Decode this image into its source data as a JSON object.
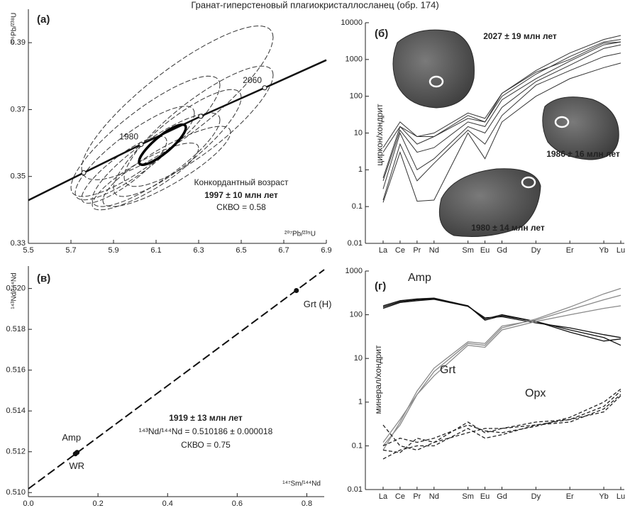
{
  "page_title": "Гранат-гиперстеновый плагиокристаллосланец (обр. 174)",
  "chart_data": [
    {
      "type": "concordia",
      "panel": "(a)",
      "xlabel": "²⁰⁷Pb/²³⁵U",
      "ylabel": "²⁰⁶Pb/²³⁸U",
      "xlim": [
        5.5,
        6.9
      ],
      "ylim": [
        0.33,
        0.4
      ],
      "xticks": [
        5.5,
        5.7,
        5.9,
        6.1,
        6.3,
        6.5,
        6.7,
        6.9
      ],
      "yticks": [
        0.33,
        0.35,
        0.37,
        0.39
      ],
      "curve": {
        "x": [
          5.5,
          5.76,
          6.03,
          6.31,
          6.61,
          6.9
        ],
        "y": [
          0.3429,
          0.3511,
          0.3596,
          0.368,
          0.3765,
          0.3848
        ]
      },
      "markers": {
        "x": [
          5.76,
          6.03,
          6.31,
          6.61
        ],
        "y": [
          0.3511,
          0.3596,
          0.368,
          0.3765
        ],
        "labels": [
          null,
          "1980",
          null,
          "2060"
        ]
      },
      "ellipses": [
        {
          "x": 6.2,
          "y": 0.372,
          "x_err": 0.45,
          "y_err": 0.023
        },
        {
          "x": 6.05,
          "y": 0.362,
          "x_err": 0.35,
          "y_err": 0.018
        },
        {
          "x": 6.0,
          "y": 0.357,
          "x_err": 0.28,
          "y_err": 0.014
        },
        {
          "x": 6.1,
          "y": 0.355,
          "x_err": 0.3,
          "y_err": 0.014
        },
        {
          "x": 6.2,
          "y": 0.36,
          "x_err": 0.3,
          "y_err": 0.016
        },
        {
          "x": 6.05,
          "y": 0.35,
          "x_err": 0.25,
          "y_err": 0.01
        },
        {
          "x": 6.15,
          "y": 0.353,
          "x_err": 0.3,
          "y_err": 0.012
        },
        {
          "x": 6.3,
          "y": 0.365,
          "x_err": 0.35,
          "y_err": 0.018
        },
        {
          "x": 5.95,
          "y": 0.352,
          "x_err": 0.2,
          "y_err": 0.01
        }
      ],
      "result_ellipse": {
        "x": 6.13,
        "y": 0.3595,
        "x_err": 0.11,
        "y_err": 0.006
      },
      "annotations": [
        "Конкордантный возраст",
        "1997 ± 10 млн лет",
        "СКВО = 0.58"
      ]
    },
    {
      "type": "spider",
      "panel": "(б)",
      "ylabel": "циркон/хондрит",
      "log": true,
      "ylim": [
        0.01,
        10000
      ],
      "yticks": [
        0.01,
        0.1,
        1,
        10,
        100,
        1000,
        10000
      ],
      "categories": [
        "La",
        "Ce",
        "Pr",
        "Nd",
        "Sm",
        "Eu",
        "Gd",
        "Dy",
        "Er",
        "Yb",
        "Lu"
      ],
      "color": "#333333",
      "lines": [
        [
          4,
          20,
          8,
          10,
          35,
          25,
          120,
          500,
          1500,
          3500,
          4500
        ],
        [
          3,
          15,
          5,
          8,
          25,
          20,
          100,
          400,
          1200,
          3000,
          3500
        ],
        [
          0.5,
          12,
          3,
          4,
          20,
          15,
          80,
          300,
          900,
          2500,
          3000
        ],
        [
          0.3,
          10,
          1,
          2,
          15,
          10,
          50,
          250,
          700,
          2000,
          2500
        ],
        [
          0.15,
          5,
          0.5,
          1.5,
          12,
          5,
          30,
          200,
          500,
          1200,
          1500
        ],
        [
          0.13,
          3,
          0.14,
          0.15,
          10,
          2,
          20,
          100,
          300,
          600,
          800
        ],
        [
          0.6,
          15,
          8,
          8,
          30,
          20,
          120,
          450,
          1000,
          2800,
          3000
        ]
      ],
      "annotations": [
        "2027 ± 19 млн лет",
        "1986 ± 16 млн лет",
        "1980 ± 14 млн лет"
      ]
    },
    {
      "type": "isochron",
      "panel": "(в)",
      "xlabel": "¹⁴⁷Sm/¹⁴⁴Nd",
      "ylabel": "¹⁴³Nd/¹⁴⁴Nd",
      "xlim": [
        0,
        0.85
      ],
      "ylim": [
        0.5098,
        0.5211
      ],
      "xticks": [
        {
          "value": 0,
          "label": "0.0"
        },
        0.2,
        0.4,
        0.6,
        0.8
      ],
      "yticks": [
        {
          "value": 0.51,
          "label": "0.510"
        },
        0.512,
        0.514,
        0.516,
        0.518,
        {
          "value": 0.52,
          "label": "0.520"
        }
      ],
      "isochron": {
        "x": [
          0,
          0.85
        ],
        "y": [
          0.510186,
          0.520922
        ]
      },
      "points": [
        {
          "x": 0.14,
          "y": 0.51197,
          "label": "Amp"
        },
        {
          "x": 0.135,
          "y": 0.5119,
          "label": "WR"
        },
        {
          "x": 0.77,
          "y": 0.5199,
          "label": "Grt (H)"
        }
      ],
      "annotations": [
        "1919 ± 13 млн лет",
        "¹⁴³Nd/¹⁴⁴Nd = 0.510186 ± 0.000018",
        "СКВО = 0.75"
      ]
    },
    {
      "type": "spider",
      "panel": "(г)",
      "ylabel": "минерал/хондрит",
      "log": true,
      "ylim": [
        0.01,
        1000
      ],
      "yticks": [
        0.01,
        0.1,
        1,
        10,
        100,
        1000
      ],
      "categories": [
        "La",
        "Ce",
        "Pr",
        "Nd",
        "Sm",
        "Eu",
        "Gd",
        "Dy",
        "Er",
        "Yb",
        "Lu"
      ],
      "series": [
        {
          "name": "Amp",
          "color": "#111111",
          "dashed": false,
          "lines": [
            [
              150,
              200,
              220,
              230,
              160,
              80,
              100,
              70,
              45,
              30,
              20
            ],
            [
              160,
              210,
              230,
              240,
              160,
              75,
              95,
              70,
              40,
              25,
              28
            ],
            [
              140,
              190,
              210,
              225,
              155,
              85,
              90,
              65,
              50,
              35,
              30
            ]
          ]
        },
        {
          "name": "Grt",
          "color": "#8a8a8a",
          "dashed": false,
          "lines": [
            [
              0.1,
              0.3,
              1.5,
              5,
              22,
              20,
              50,
              80,
              150,
              300,
              400
            ],
            [
              0.08,
              0.35,
              1.8,
              6,
              24,
              22,
              55,
              75,
              130,
              220,
              280
            ],
            [
              0.12,
              0.4,
              1.5,
              4,
              20,
              18,
              45,
              70,
              100,
              140,
              160
            ]
          ]
        },
        {
          "name": "Opx",
          "color": "#222222",
          "dashed": true,
          "lines": [
            [
              0.3,
              0.1,
              0.08,
              0.12,
              0.35,
              0.2,
              0.25,
              0.3,
              0.4,
              0.8,
              1.8
            ],
            [
              0.1,
              0.15,
              0.12,
              0.15,
              0.3,
              0.22,
              0.2,
              0.28,
              0.45,
              1.0,
              2
            ],
            [
              0.05,
              0.08,
              0.1,
              0.1,
              0.25,
              0.15,
              0.18,
              0.3,
              0.35,
              0.7,
              1.5
            ],
            [
              0.08,
              0.07,
              0.15,
              0.12,
              0.2,
              0.25,
              0.25,
              0.35,
              0.4,
              0.6,
              1.4
            ]
          ]
        }
      ]
    }
  ]
}
